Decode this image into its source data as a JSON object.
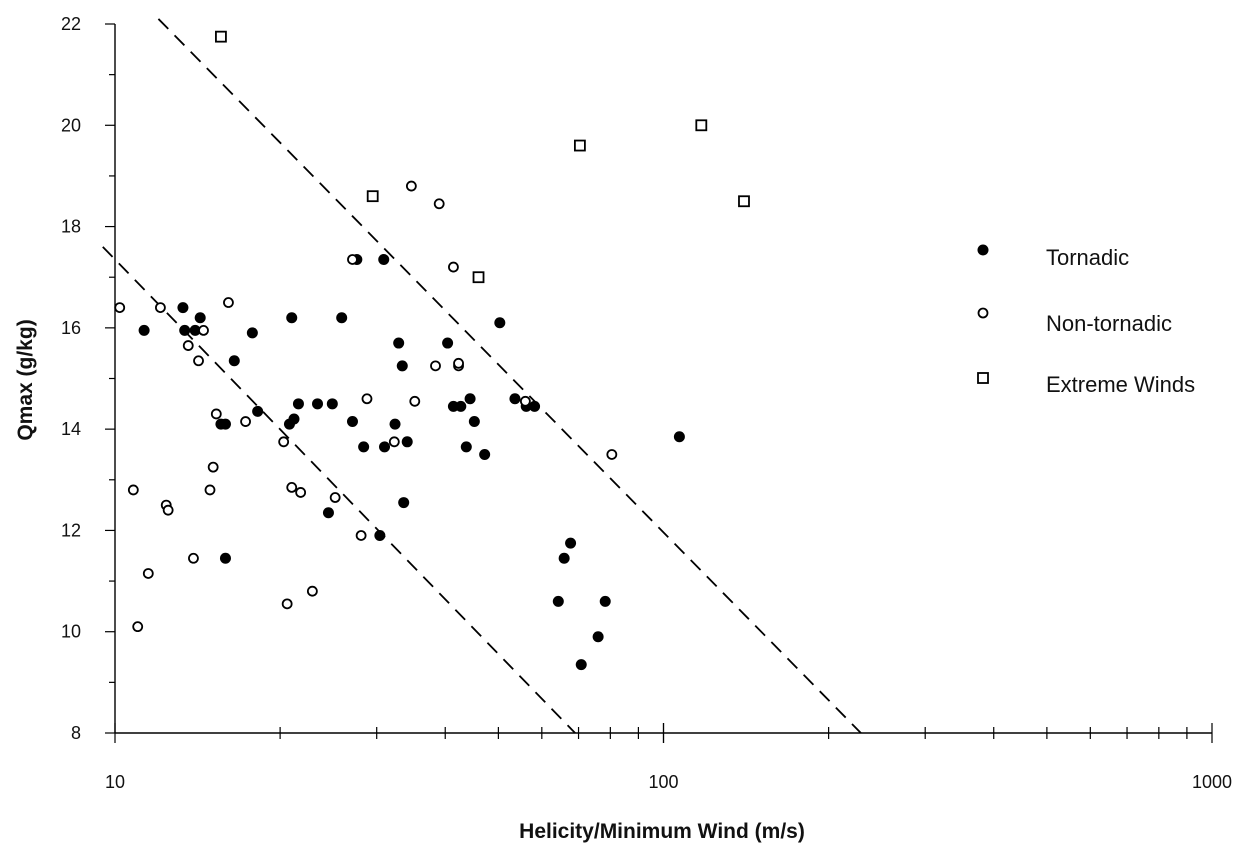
{
  "chart_data": {
    "type": "scatter",
    "title": "",
    "xlabel": "Helicity/Minimum Wind (m/s)",
    "ylabel": "Qmax (g/kg)",
    "xscale": "log",
    "xlim": [
      10,
      1000
    ],
    "ylim": [
      8,
      22
    ],
    "xticks": [
      10,
      100,
      1000
    ],
    "xtick_labels": [
      "10",
      "100",
      "1000"
    ],
    "yticks": [
      8,
      10,
      12,
      14,
      16,
      18,
      20,
      22
    ],
    "ytick_labels": [
      "8",
      "10",
      "12",
      "14",
      "16",
      "18",
      "20",
      "22"
    ],
    "grid": false,
    "legend_position": "right",
    "series": [
      {
        "name": "Tornadic",
        "marker": "filled-circle",
        "color": "#000000",
        "points": [
          [
            11.3,
            15.95
          ],
          [
            13.3,
            16.4
          ],
          [
            13.4,
            15.95
          ],
          [
            14.0,
            15.95
          ],
          [
            14.3,
            16.2
          ],
          [
            15.6,
            14.1
          ],
          [
            15.9,
            14.1
          ],
          [
            16.5,
            15.35
          ],
          [
            17.8,
            15.9
          ],
          [
            18.2,
            14.35
          ],
          [
            15.9,
            11.45
          ],
          [
            20.8,
            14.1
          ],
          [
            21.0,
            16.2
          ],
          [
            21.2,
            14.2
          ],
          [
            21.6,
            14.5
          ],
          [
            23.4,
            14.5
          ],
          [
            24.9,
            14.5
          ],
          [
            25.9,
            16.2
          ],
          [
            27.1,
            14.15
          ],
          [
            27.6,
            17.35
          ],
          [
            24.5,
            12.35
          ],
          [
            28.4,
            13.65
          ],
          [
            30.4,
            11.9
          ],
          [
            30.9,
            17.35
          ],
          [
            31.0,
            13.65
          ],
          [
            32.4,
            14.1
          ],
          [
            32.9,
            15.7
          ],
          [
            33.4,
            15.25
          ],
          [
            33.6,
            12.55
          ],
          [
            34.1,
            13.75
          ],
          [
            40.4,
            15.7
          ],
          [
            41.4,
            14.45
          ],
          [
            42.7,
            14.45
          ],
          [
            43.7,
            13.65
          ],
          [
            44.4,
            14.6
          ],
          [
            45.2,
            14.15
          ],
          [
            47.2,
            13.5
          ],
          [
            50.3,
            16.1
          ],
          [
            53.6,
            14.6
          ],
          [
            56.2,
            14.45
          ],
          [
            58.2,
            14.45
          ],
          [
            64.3,
            10.6
          ],
          [
            65.9,
            11.45
          ],
          [
            67.7,
            11.75
          ],
          [
            70.8,
            9.35
          ],
          [
            76.0,
            9.9
          ],
          [
            78.3,
            10.6
          ],
          [
            106.9,
            13.85
          ]
        ]
      },
      {
        "name": "Non-tornadic",
        "marker": "open-circle",
        "color": "#000000",
        "points": [
          [
            10.2,
            16.4
          ],
          [
            10.8,
            12.8
          ],
          [
            11.0,
            10.1
          ],
          [
            11.5,
            11.15
          ],
          [
            12.1,
            16.4
          ],
          [
            12.4,
            12.5
          ],
          [
            12.5,
            12.4
          ],
          [
            13.6,
            15.65
          ],
          [
            13.9,
            11.45
          ],
          [
            14.2,
            15.35
          ],
          [
            14.5,
            15.95
          ],
          [
            14.9,
            12.8
          ],
          [
            15.1,
            13.25
          ],
          [
            15.3,
            14.3
          ],
          [
            16.1,
            16.5
          ],
          [
            17.3,
            14.15
          ],
          [
            20.3,
            13.75
          ],
          [
            20.6,
            10.55
          ],
          [
            21.0,
            12.85
          ],
          [
            21.8,
            12.75
          ],
          [
            22.9,
            10.8
          ],
          [
            25.2,
            12.65
          ],
          [
            27.1,
            17.35
          ],
          [
            28.1,
            11.9
          ],
          [
            28.8,
            14.6
          ],
          [
            32.3,
            13.75
          ],
          [
            34.7,
            18.8
          ],
          [
            35.2,
            14.55
          ],
          [
            38.4,
            15.25
          ],
          [
            39.0,
            18.45
          ],
          [
            41.4,
            17.2
          ],
          [
            42.3,
            15.25
          ],
          [
            42.3,
            15.3
          ],
          [
            56.0,
            14.55
          ],
          [
            80.5,
            13.5
          ]
        ]
      },
      {
        "name": "Extreme Winds",
        "marker": "open-square",
        "color": "#000000",
        "points": [
          [
            15.6,
            21.75
          ],
          [
            29.5,
            18.6
          ],
          [
            46.0,
            17.0
          ],
          [
            70.4,
            19.6
          ],
          [
            117.2,
            20.0
          ],
          [
            140.2,
            18.5
          ]
        ]
      }
    ],
    "lines": [
      {
        "style": "dashed",
        "color": "#000000",
        "points": [
          [
            9.5,
            17.6
          ],
          [
            69.0,
            8.0
          ]
        ]
      },
      {
        "style": "dashed",
        "color": "#000000",
        "points": [
          [
            12.0,
            22.1
          ],
          [
            229.0,
            8.0
          ]
        ]
      }
    ]
  }
}
